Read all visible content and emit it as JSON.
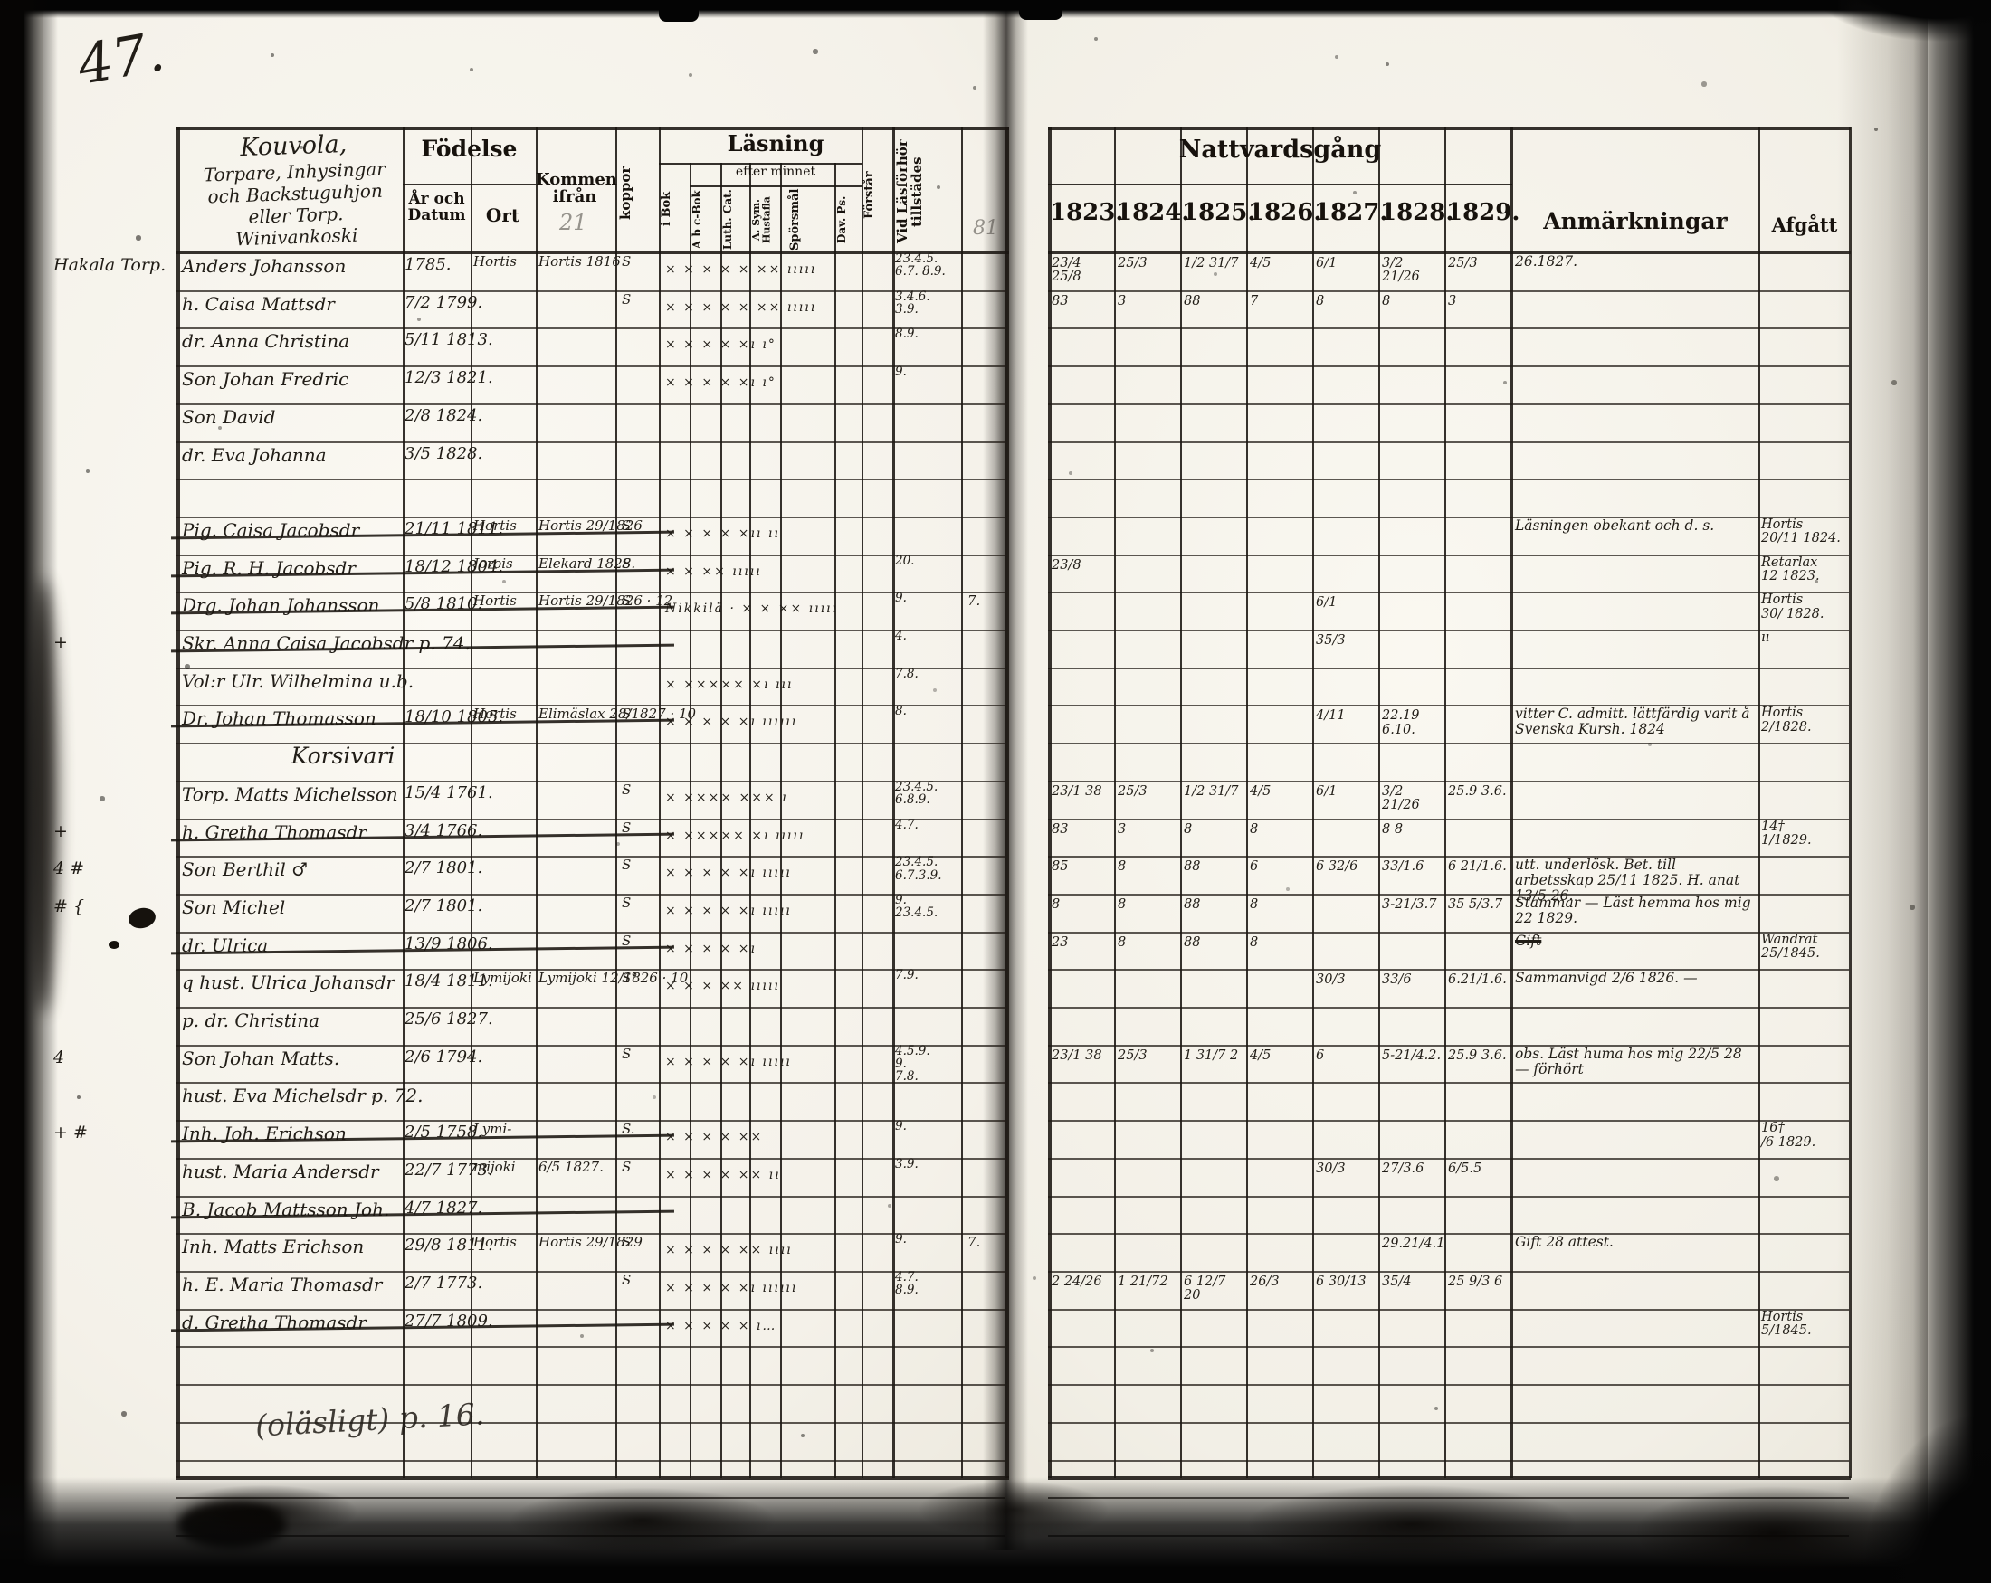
{
  "scan": {
    "page_number": "47."
  },
  "left_page": {
    "header_script": [
      "Kouvola,",
      "Torpare, Inhysingar",
      "och Backstuguhjon",
      "eller Torp.",
      "Winivankoski"
    ],
    "columns": {
      "fodelse": "Födelse",
      "ar_och_datum": "År och Datum",
      "ort": "Ort",
      "kommen_ifran": "Kommen ifrån",
      "koppor": "koppor",
      "lasning": "Läsning",
      "efter_minnet": "efter minnet",
      "i_bok": "i Bok",
      "abc_bok": "A b c-Bok",
      "luth_cat": "Luth. Cat.",
      "hustafla": "A. Sym. Hustafla",
      "sporsmal": "Spörsmål",
      "dav_ps": "Dav. Ps.",
      "forstar": "Förstår",
      "tillstades": "Vid Läsförhör tillstädes"
    },
    "pencil_kommen": "21",
    "pencil_extra": "81",
    "bottom_note": "(oläsligt) p. 16."
  },
  "right_page": {
    "title": "Nattvardsgång",
    "years": [
      "1823.",
      "1824.",
      "1825.",
      "1826.",
      "1827.",
      "1828.",
      "1829."
    ],
    "anmarkningar": "Anmärkningar",
    "afgatt": "Afgått"
  },
  "rows": [
    {
      "margin": "Hakala Torp.",
      "name": "Anders Johansson",
      "date": "1785.",
      "ort": "Hortis",
      "from": "Hortis 1816",
      "koppor": "S",
      "reading": "× × × × × ×× ııııı",
      "tillstades": "23.4.5.\n6.7. 8.9.",
      "years": [
        "23/4 25/8",
        "25/3",
        "1/2 31/7",
        "4/5",
        "6/1",
        "3/2 21/26",
        "25/3"
      ],
      "anm": "26.1827."
    },
    {
      "name": "h. Caisa Mattsdr",
      "date": "7/2 1799.",
      "koppor": "S",
      "reading": "× × × × × ×× ııııı",
      "tillstades": "3.4.6.\n3.9.",
      "years": [
        "83",
        "3",
        "88",
        "7",
        "8",
        "8",
        "3"
      ]
    },
    {
      "name": "dr. Anna Christina",
      "date": "5/11 1813.",
      "reading": "× × × × ×ı ı°",
      "tillstades": "8.9."
    },
    {
      "name": "Son Johan Fredric",
      "date": "12/3 1821.",
      "reading": "× × × × ×ı ı°",
      "tillstades": "9."
    },
    {
      "name": "Son David",
      "date": "2/8 1824."
    },
    {
      "name": "dr. Eva Johanna",
      "date": "3/5 1828."
    },
    {},
    {
      "name": "Pig. Caisa Jacobsdr",
      "struck": true,
      "date": "21/11 1811.",
      "ort": "Hortis",
      "from": "Hortis 29/1826",
      "koppor": "S",
      "reading": "× × × × ×ıı ıı",
      "anm": "Läsningen obekant och d. s.",
      "afgatt": "Hortis\n20/11 1824."
    },
    {
      "name": "Pig. R. H. Jacobsdr",
      "struck": true,
      "date": "18/12 1804.",
      "ort": "Jorois",
      "from": "Elekard 1828.",
      "koppor": "S",
      "reading": "× × ×× ııııı",
      "tillstades": "20.",
      "years": [
        "23/8",
        "",
        "",
        "",
        "",
        "",
        ""
      ],
      "afgatt": "Retarlax\n12 1823."
    },
    {
      "name": "Drg. Johan Johansson",
      "struck": true,
      "date": "5/8 1810.",
      "ort": "Hortis",
      "from": "Hortis 29/1826 · 12",
      "koppor": "S",
      "reading": "Nikkilä · × × ×× ııııı",
      "tillstades": "9.",
      "extra": "7.",
      "years": [
        "",
        "",
        "",
        "",
        "6/1",
        "",
        ""
      ],
      "afgatt": "Hortis\n30/ 1828."
    },
    {
      "margin": "+",
      "name": "Skr. Anna Caisa Jacobsdr p. 74.",
      "struck": true,
      "tillstades": "4.",
      "years": [
        "",
        "",
        "",
        "",
        "35/3",
        "",
        ""
      ],
      "afgatt": "ıı"
    },
    {
      "name": "Vol:r Ulr. Wilhelmina u.b.",
      "reading": "× ××××× ×ı ııı",
      "tillstades": "7.8."
    },
    {
      "name": "Dr. Johan Thomasson",
      "struck": true,
      "date": "18/10 1805.",
      "ort": "Hortis",
      "from": "Elimäslax 28/1827 · 10",
      "koppor": "S",
      "reading": "× × × × ×ı ıııııı",
      "tillstades": "8.",
      "years": [
        "",
        "",
        "",
        "",
        "4/11",
        "22.19 6.10.",
        ""
      ],
      "anm": "vitter C. admitt. lättfärdig varit å Svenska Kursh. 1824",
      "afgatt": "Hortis\n2/1828."
    },
    {
      "heading": "Korsivari"
    },
    {
      "name": "Torp. Matts Michelsson",
      "date": "15/4 1761.",
      "koppor": "S",
      "reading": "× ×××× ××× ı",
      "tillstades": "23.4.5.\n6.8.9.",
      "years": [
        "23/1 38",
        "25/3",
        "1/2 31/7",
        "4/5",
        "6/1",
        "3/2 21/26",
        "25.9 3.6."
      ]
    },
    {
      "margin": "+",
      "name": "h. Gretha Thomasdr",
      "struck": true,
      "date": "3/4 1766.",
      "koppor": "S",
      "reading": "× ××××× ×ı ııııı",
      "tillstades": "4.7.",
      "years": [
        "83",
        "3",
        "8",
        "8",
        "",
        "8 8",
        ""
      ],
      "afgatt": "14†\n1/1829."
    },
    {
      "margin": "4 #",
      "name": "Son Berthil ♂",
      "date": "2/7 1801.",
      "koppor": "S",
      "reading": "× × × × ×ı ııııı",
      "tillstades": "23.4.5.\n6.7.3.9.",
      "years": [
        "85",
        "8",
        "88",
        "6",
        "6 32/6",
        "33/1.6",
        "6 21/1.6."
      ],
      "anm": "utt. underlösk. Bet. till arbetsskap 25/11 1825. H. anat 13/5 26."
    },
    {
      "margin": "# {",
      "name": "Son Michel",
      "date": "2/7 1801.",
      "koppor": "S",
      "reading": "× × × × ×ı ııııı",
      "tillstades": "9.\n23.4.5.",
      "years": [
        "8",
        "8",
        "88",
        "8",
        "",
        "3-21/3.7",
        "35 5/3.7"
      ],
      "anm": "Stammar — Läst hemma hos mig 22 1829."
    },
    {
      "name": "dr. Ulrica",
      "struck": true,
      "date": "13/9 1806.",
      "koppor": "S",
      "reading": "× × × × ×ı",
      "years": [
        "23",
        "8",
        "88",
        "8",
        "",
        "",
        ""
      ],
      "anm": "Gift",
      "anm_struck": true,
      "afgatt": "Wandrat\n25/1845."
    },
    {
      "name": "q hust. Ulrica Johansdr",
      "date": "18/4 1811.",
      "ort": "Lymijoki",
      "from": "Lymijoki 12/1826 · 10",
      "koppor": "S°",
      "reading": "× × × ×× ııııı",
      "tillstades": "7.9.",
      "years": [
        "",
        "",
        "",
        "",
        "30/3",
        "33/6",
        "6.21/1.6."
      ],
      "anm": "Sammanvigd 2/6 1826. —"
    },
    {
      "name": "p. dr. Christina",
      "date": "25/6 1827."
    },
    {
      "margin": "4",
      "name": "Son Johan Matts.",
      "date": "2/6 1794.",
      "koppor": "S",
      "reading": "× × × × ×ı ııııı",
      "tillstades": "4.5.9.\n9.\n7.8.",
      "years": [
        "23/1 38",
        "25/3",
        "1 31/7 2",
        "4/5",
        "6",
        "5-21/4.2.",
        "25.9 3.6."
      ],
      "anm": "obs. Läst huma hos mig 22/5 28 — förhört"
    },
    {
      "name": "hust. Eva Michelsdr p. 72."
    },
    {
      "margin": "+ #",
      "name": "Inh. Joh. Erichson",
      "struck": true,
      "date": "2/5 1758.",
      "ort": "Lymi-",
      "koppor": "S.",
      "reading": "× × × × ××",
      "tillstades": "9.",
      "afgatt": "16†\n/6 1829."
    },
    {
      "name": "hust. Maria Andersdr",
      "date": "22/7 1773.",
      "ort": "mijoki",
      "from": "6/5 1827.",
      "koppor": "S",
      "reading": "× × × × ×× ıı",
      "tillstades": "3.9.",
      "years": [
        "",
        "",
        "",
        "",
        "30/3",
        "27/3.6",
        "6/5.5"
      ]
    },
    {
      "name": "B. Jacob Mattsson Joh.",
      "struck": true,
      "date": "4/7 1827."
    },
    {
      "name": "Inh. Matts Erichson",
      "date": "29/8 1811.",
      "ort": "Hortis",
      "from": "Hortis 29/1829",
      "koppor": "S",
      "reading": "× × × × ×× ıııı",
      "tillstades": "9.",
      "extra": "7.",
      "years": [
        "",
        "",
        "",
        "",
        "",
        "29.21/4.1",
        ""
      ],
      "anm": "Gift 28 attest."
    },
    {
      "name": "h. E. Maria Thomasdr",
      "date": "2/7 1773.",
      "koppor": "S",
      "reading": "× × × × ×ı ıııııı",
      "tillstades": "4.7.\n8.9.",
      "years": [
        "2 24/26",
        "1 21/72",
        "6 12/7 20",
        "26/3",
        "6 30/13",
        "35/4",
        "25 9/3 6"
      ]
    },
    {
      "name": "d. Gretha Thomasdr",
      "struck": true,
      "date": "27/7 1809.",
      "reading": "× × × × × ı…",
      "afgatt": "Hortis\n5/1845."
    },
    {},
    {},
    {},
    {},
    {}
  ]
}
